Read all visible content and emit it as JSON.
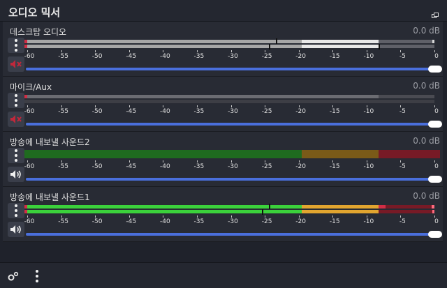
{
  "panel": {
    "title": "오디오 믹서"
  },
  "channels": [
    {
      "name": "데스크탑 오디오",
      "db": "0.0 dB",
      "muted": true,
      "fader": 1.0
    },
    {
      "name": "마이크/Aux",
      "db": "0.0 dB",
      "muted": true,
      "fader": 1.0
    },
    {
      "name": "방송에 내보낼 사운드2",
      "db": "0.0 dB",
      "muted": false,
      "fader": 1.0
    },
    {
      "name": "방송에 내보낼 사운드1",
      "db": "0.0 dB",
      "muted": false,
      "fader": 1.0
    }
  ],
  "scale": [
    "-60",
    "-55",
    "-50",
    "-45",
    "-40",
    "-35",
    "-30",
    "-25",
    "-20",
    "-15",
    "-10",
    "-5",
    "0"
  ],
  "icons": {
    "undock": "undock-icon",
    "menu": "vertical-dots-icon",
    "mute": "speaker-muted-icon",
    "unmute": "speaker-icon",
    "gear": "gears-icon"
  },
  "colors": {
    "green": "#3bd13b",
    "yellow": "#e2a52f",
    "red": "#d12d45",
    "fader": "#4a6fdc"
  }
}
